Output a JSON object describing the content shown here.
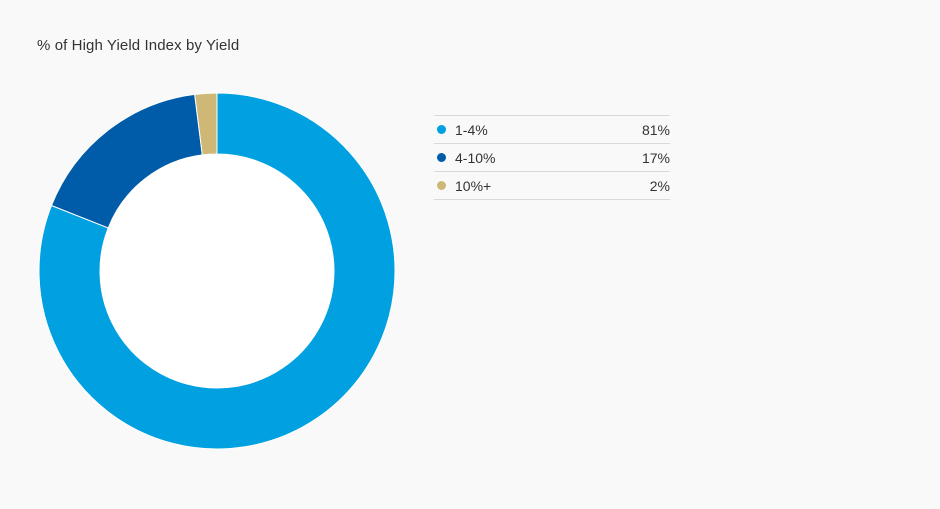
{
  "chart_data": {
    "type": "pie",
    "title": "% of High Yield Index by Yield",
    "donut": true,
    "categories": [
      "1-4%",
      "4-10%",
      "10%+"
    ],
    "values": [
      81,
      17,
      2
    ],
    "value_labels": [
      "81%",
      "17%",
      "2%"
    ],
    "colors": [
      "#00a0e1",
      "#005ca9",
      "#cfb875"
    ],
    "legend_position": "right"
  }
}
